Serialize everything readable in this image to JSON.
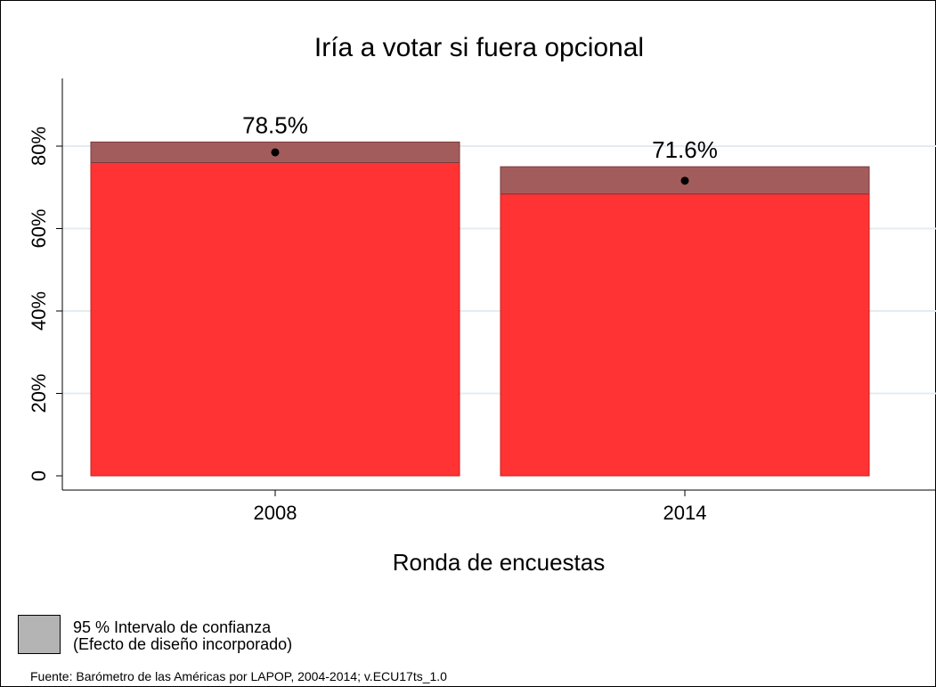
{
  "chart_data": {
    "type": "bar",
    "title": "Iría a votar si fuera opcional",
    "xlabel": "Ronda de encuestas",
    "ylabel": "",
    "categories": [
      "2008",
      "2014"
    ],
    "values": [
      78.5,
      71.6
    ],
    "value_labels": [
      "78.5%",
      "71.6%"
    ],
    "ci_low": [
      76.0,
      68.4
    ],
    "ci_high": [
      81.0,
      75.0
    ],
    "ylim": [
      0,
      100
    ],
    "yticks": [
      0,
      20,
      40,
      60,
      80
    ],
    "ytick_labels": [
      "0",
      "20%",
      "40%",
      "60%",
      "80%"
    ],
    "grid": true,
    "colors": {
      "bar": "#ff3333",
      "ci": "#a35c5c",
      "grid": "#e3ecf0"
    },
    "legend": {
      "line1": "95 % Intervalo de confianza",
      "line2": "(Efecto de diseño incorporado)",
      "swatch_color": "#b4b4b4",
      "placement": "bottom-left"
    },
    "source": "Fuente: Barómetro de las Américas por LAPOP, 2004-2014; v.ECU17ts_1.0"
  }
}
